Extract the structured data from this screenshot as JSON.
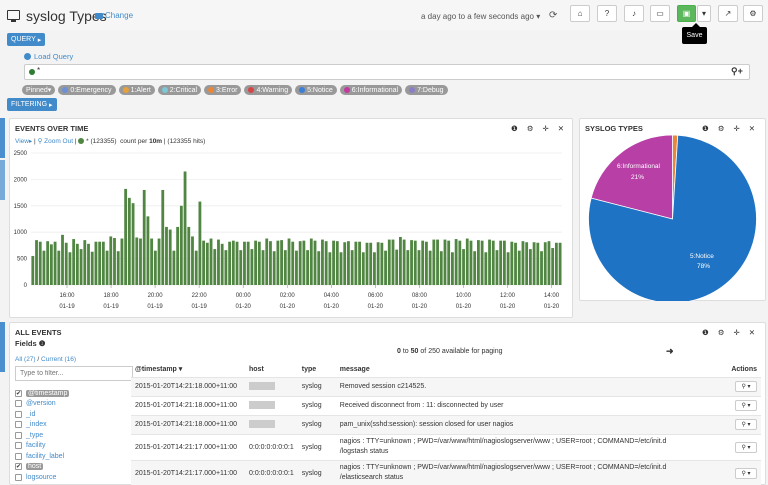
{
  "header": {
    "title": "syslog Types",
    "change_label": "Change",
    "timerange": "a day ago to a few seconds ago",
    "save_tooltip": "Save"
  },
  "query": {
    "toggle_label": "QUERY",
    "load_label": "Load Query",
    "text": "*",
    "pills": [
      {
        "label": "Pinned",
        "color": "#999999"
      },
      {
        "label": "0:Emergency",
        "color": "#6d8fd6"
      },
      {
        "label": "1:Alert",
        "color": "#e5a13c"
      },
      {
        "label": "2:Critical",
        "color": "#7dc7d6"
      },
      {
        "label": "3:Error",
        "color": "#e8873a"
      },
      {
        "label": "4:Warning",
        "color": "#d64545"
      },
      {
        "label": "5:Notice",
        "color": "#3b7ed6"
      },
      {
        "label": "6:Informational",
        "color": "#c0399f"
      },
      {
        "label": "7:Debug",
        "color": "#8b7ec8"
      }
    ]
  },
  "filtering": {
    "label": "FILTERING"
  },
  "events_panel": {
    "title": "EVENTS OVER TIME",
    "view_label": "View",
    "zoom_label": "Zoom Out",
    "legend_text": "* (123355)",
    "count_text": "count per",
    "interval": "10m",
    "hits_text": "(123355 hits)"
  },
  "chart_data": [
    {
      "type": "bar",
      "title": "",
      "ylim": [
        0,
        2500
      ],
      "yticks": [
        "2500",
        "2000",
        "1500",
        "1000",
        "500",
        "0"
      ],
      "xticks": [
        {
          "time": "16:00",
          "date": "01-19"
        },
        {
          "time": "18:00",
          "date": "01-19"
        },
        {
          "time": "20:00",
          "date": "01-19"
        },
        {
          "time": "22:00",
          "date": "01-19"
        },
        {
          "time": "00:00",
          "date": "01-20"
        },
        {
          "time": "02:00",
          "date": "01-20"
        },
        {
          "time": "04:00",
          "date": "01-20"
        },
        {
          "time": "06:00",
          "date": "01-20"
        },
        {
          "time": "08:00",
          "date": "01-20"
        },
        {
          "time": "10:00",
          "date": "01-20"
        },
        {
          "time": "12:00",
          "date": "01-20"
        },
        {
          "time": "14:00",
          "date": "01-20"
        }
      ],
      "series": [
        {
          "name": "*",
          "color": "#508642",
          "values": [
            550,
            850,
            820,
            650,
            830,
            770,
            820,
            650,
            950,
            800,
            620,
            870,
            780,
            680,
            850,
            780,
            630,
            820,
            820,
            820,
            650,
            920,
            890,
            640,
            880,
            1820,
            1650,
            1550,
            900,
            880,
            1800,
            1300,
            880,
            650,
            880,
            1800,
            1100,
            1050,
            650,
            1100,
            1500,
            2150,
            1100,
            920,
            650,
            1580,
            840,
            800,
            880,
            680,
            860,
            780,
            660,
            820,
            840,
            820,
            660,
            820,
            820,
            680,
            840,
            820,
            660,
            880,
            830,
            640,
            840,
            850,
            660,
            880,
            820,
            650,
            830,
            840,
            660,
            880,
            840,
            640,
            860,
            830,
            620,
            840,
            830,
            620,
            810,
            830,
            660,
            820,
            820,
            620,
            800,
            800,
            620,
            810,
            800,
            650,
            860,
            860,
            670,
            910,
            860,
            660,
            850,
            840,
            660,
            840,
            820,
            650,
            860,
            860,
            640,
            860,
            840,
            620,
            870,
            840,
            680,
            880,
            840,
            640,
            850,
            840,
            620,
            860,
            840,
            660,
            840,
            840,
            620,
            820,
            800,
            650,
            830,
            810,
            680,
            810,
            800,
            640,
            810,
            830,
            700,
            800,
            800
          ]
        }
      ]
    },
    {
      "type": "pie",
      "title": "SYSLOG TYPES",
      "slices": [
        {
          "label": "5:Notice",
          "percent": 78,
          "color": "#1f73c4",
          "display": "5:Notice 78%"
        },
        {
          "label": "6:Informational",
          "percent": 21,
          "color": "#b73fa6",
          "display": "6:Informational 21%"
        },
        {
          "label": "3:Error",
          "percent": 1,
          "color": "#e8873a",
          "display": ""
        }
      ]
    }
  ],
  "pie_panel": {
    "title": "SYSLOG TYPES",
    "notice_label": "5:Notice",
    "notice_pct": "78%",
    "info_label": "6:Informational",
    "info_pct": "21%"
  },
  "all_events": {
    "title": "ALL EVENTS",
    "fields_label": "Fields",
    "all_link": "All (27)",
    "current_link": "Current (16)",
    "filter_placeholder": "Type to filter...",
    "paging_prefix": "0",
    "paging_to": "to",
    "paging_end": "50",
    "paging_suffix": "of 250 available for paging",
    "columns": [
      "@timestamp",
      "host",
      "type",
      "message"
    ],
    "actions_label": "Actions",
    "fields": [
      {
        "name": "@timestamp",
        "checked": true
      },
      {
        "name": "@version",
        "checked": false
      },
      {
        "name": "_id",
        "checked": false
      },
      {
        "name": "_index",
        "checked": false
      },
      {
        "name": "_type",
        "checked": false
      },
      {
        "name": "facility",
        "checked": false
      },
      {
        "name": "facility_label",
        "checked": false
      },
      {
        "name": "host",
        "checked": true
      },
      {
        "name": "logsource",
        "checked": false
      }
    ],
    "rows": [
      {
        "timestamp": "2015-01-20T14:21:18.000+11:00",
        "host": "",
        "type": "syslog",
        "message": "Removed session c214525."
      },
      {
        "timestamp": "2015-01-20T14:21:18.000+11:00",
        "host": "",
        "type": "syslog",
        "message": "Received disconnect from            : 11: disconnected by user"
      },
      {
        "timestamp": "2015-01-20T14:21:18.000+11:00",
        "host": "",
        "type": "syslog",
        "message": "pam_unix(sshd:session): session closed for user nagios"
      },
      {
        "timestamp": "2015-01-20T14:21:17.000+11:00",
        "host": "0:0:0:0:0:0:0:1",
        "type": "syslog",
        "message": "nagios : TTY=unknown ; PWD=/var/www/html/nagioslogserver/www ; USER=root ; COMMAND=/etc/init.d",
        "message2": "/logstash status"
      },
      {
        "timestamp": "2015-01-20T14:21:17.000+11:00",
        "host": "0:0:0:0:0:0:0:1",
        "type": "syslog",
        "message": "nagios : TTY=unknown ; PWD=/var/www/html/nagioslogserver/www ; USER=root ; COMMAND=/etc/init.d",
        "message2": "/elasticsearch status"
      }
    ]
  }
}
